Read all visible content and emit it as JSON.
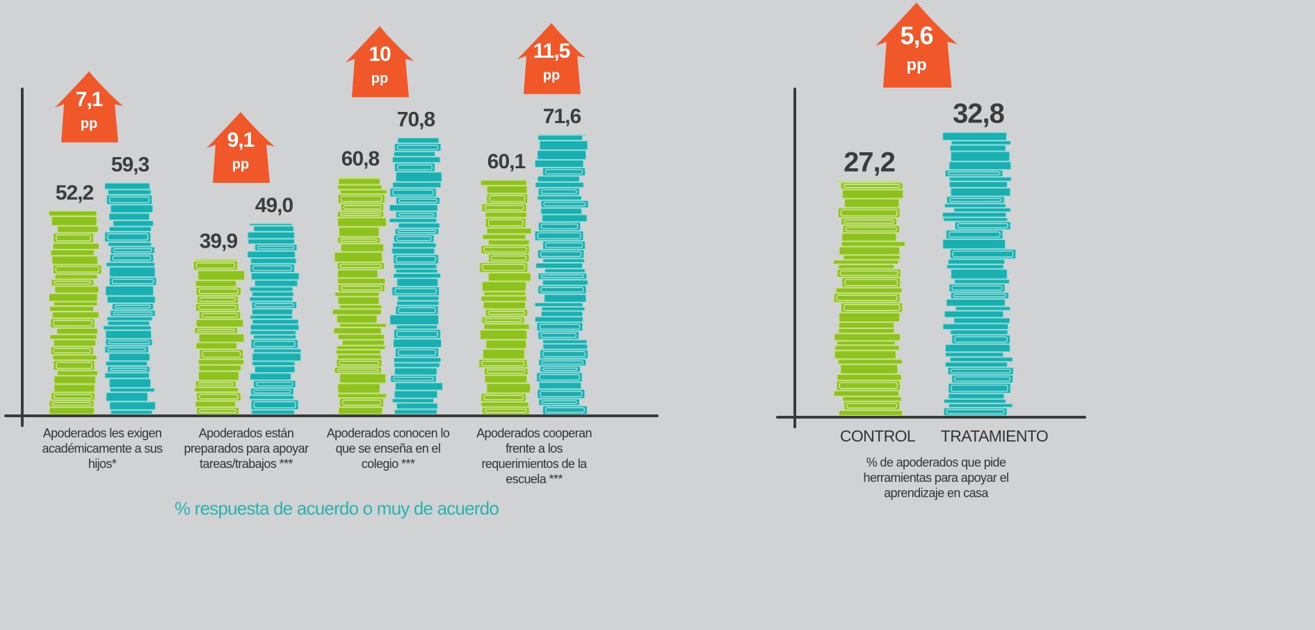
{
  "chart_data": [
    {
      "type": "bar",
      "categories": [
        "Apoderados les exigen académicamente a sus hijos*",
        "Apoderados están preparados para apoyar tareas/trabajos ***",
        "Apoderados conocen lo que se enseña en el colegio ***",
        "Apoderados cooperan frente a los requerimientos de la escuela ***"
      ],
      "series": [
        {
          "color": "#8dc21f",
          "values": [
            52.2,
            39.9,
            60.8,
            60.1
          ],
          "value_labels": [
            "52,2",
            "39,9",
            "60,8",
            "60,1"
          ]
        },
        {
          "color": "#1aafb0",
          "values": [
            59.3,
            49.0,
            70.8,
            71.6
          ],
          "value_labels": [
            "59,3",
            "49,0",
            "70,8",
            "71,6"
          ]
        }
      ],
      "annotations": [
        {
          "value": 7.1,
          "label": "7,1"
        },
        {
          "value": 9.1,
          "label": "9,1"
        },
        {
          "value": 10,
          "label": "10"
        },
        {
          "value": 11.5,
          "label": "11,5"
        }
      ],
      "annotation_unit": "pp",
      "xlabel": "% respuesta de acuerdo o muy de acuerdo",
      "ylim": [
        0,
        75
      ]
    },
    {
      "type": "bar",
      "categories": [
        "CONTROL",
        "TRATAMIENTO"
      ],
      "values": [
        27.2,
        32.8
      ],
      "value_labels": [
        "27,2",
        "32,8"
      ],
      "colors": [
        "#8dc21f",
        "#1aafb0"
      ],
      "annotations": [
        {
          "value": 5.6,
          "label": "5,6"
        }
      ],
      "annotation_unit": "pp",
      "xlabel": "% de apoderados que pide herramientas para apoyar el aprendizaje en casa",
      "ylim": [
        0,
        36
      ]
    }
  ]
}
